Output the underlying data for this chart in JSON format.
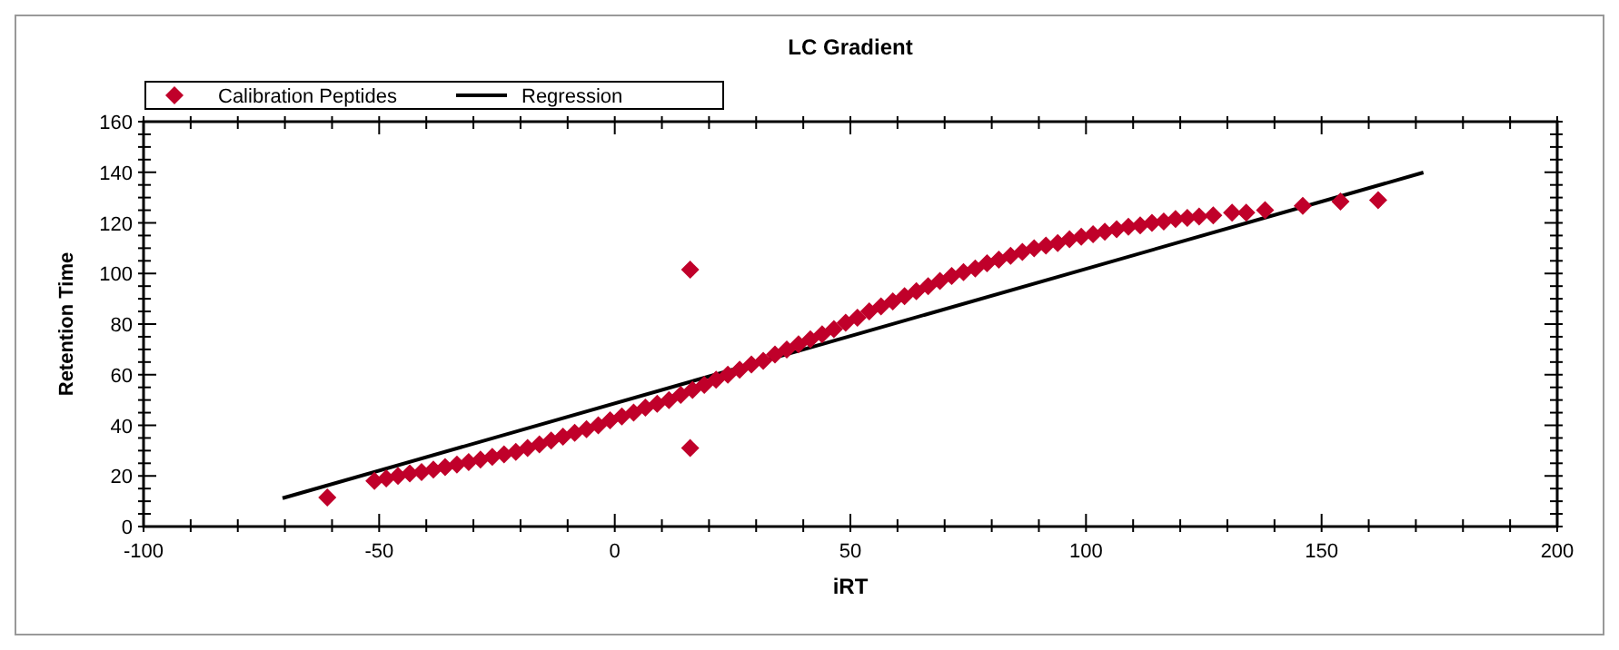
{
  "chart_data": {
    "type": "scatter",
    "title": "LC Gradient",
    "xlabel": "iRT",
    "ylabel": "Retention Time",
    "legend": "top left",
    "marker": "diamond",
    "xlim": [
      -100,
      200
    ],
    "ylim": [
      0,
      160
    ],
    "xticks": [
      -100,
      {
        "value": -90,
        "label": null
      },
      {
        "value": -80,
        "label": null
      },
      {
        "value": -70,
        "label": null
      },
      {
        "value": -60,
        "label": null
      },
      -50,
      {
        "value": -40,
        "label": null
      },
      {
        "value": -30,
        "label": null
      },
      {
        "value": -20,
        "label": null
      },
      {
        "value": -10,
        "label": null
      },
      0,
      {
        "value": 10,
        "label": null
      },
      {
        "value": 20,
        "label": null
      },
      {
        "value": 30,
        "label": null
      },
      {
        "value": 40,
        "label": null
      },
      50,
      {
        "value": 60,
        "label": null
      },
      {
        "value": 70,
        "label": null
      },
      {
        "value": 80,
        "label": null
      },
      {
        "value": 90,
        "label": null
      },
      100,
      {
        "value": 110,
        "label": null
      },
      {
        "value": 120,
        "label": null
      },
      {
        "value": 130,
        "label": null
      },
      {
        "value": 140,
        "label": null
      },
      150,
      {
        "value": 160,
        "label": null
      },
      {
        "value": 170,
        "label": null
      },
      {
        "value": 180,
        "label": null
      },
      {
        "value": 190,
        "label": null
      },
      200
    ],
    "yticks": [
      0,
      {
        "value": 5,
        "label": null
      },
      {
        "value": 10,
        "label": null
      },
      {
        "value": 15,
        "label": null
      },
      20,
      {
        "value": 25,
        "label": null
      },
      {
        "value": 30,
        "label": null
      },
      {
        "value": 35,
        "label": null
      },
      40,
      {
        "value": 45,
        "label": null
      },
      {
        "value": 50,
        "label": null
      },
      {
        "value": 55,
        "label": null
      },
      60,
      {
        "value": 65,
        "label": null
      },
      {
        "value": 70,
        "label": null
      },
      {
        "value": 75,
        "label": null
      },
      80,
      {
        "value": 85,
        "label": null
      },
      {
        "value": 90,
        "label": null
      },
      {
        "value": 95,
        "label": null
      },
      100,
      {
        "value": 105,
        "label": null
      },
      {
        "value": 110,
        "label": null
      },
      {
        "value": 115,
        "label": null
      },
      120,
      {
        "value": 125,
        "label": null
      },
      {
        "value": 130,
        "label": null
      },
      {
        "value": 135,
        "label": null
      },
      140,
      {
        "value": 145,
        "label": null
      },
      {
        "value": 150,
        "label": null
      },
      {
        "value": 155,
        "label": null
      },
      160
    ],
    "series": [
      {
        "name": "Calibration Peptides",
        "color": "#c0002a",
        "x": [
          -61,
          -51,
          -48.5,
          -46,
          -43.5,
          -41,
          -38.5,
          -36,
          -33.5,
          -31,
          -28.5,
          -26,
          -23.5,
          -21,
          -18.5,
          -16,
          -13.5,
          -11,
          -8.5,
          -6,
          -3.5,
          -1,
          1.5,
          4,
          6.5,
          9,
          11.5,
          14,
          16.5,
          19,
          21.5,
          24,
          26.5,
          29,
          31.5,
          34,
          36.5,
          39,
          41.5,
          44,
          46.5,
          49,
          51.5,
          54,
          56.5,
          59,
          61.5,
          64,
          66.5,
          69,
          71.5,
          74,
          76.5,
          79,
          81.5,
          84,
          86.5,
          89,
          91.5,
          94,
          96.5,
          99,
          101.5,
          104,
          106.5,
          109,
          111.5,
          114,
          116.5,
          119,
          121.5,
          124,
          127,
          131,
          134,
          138,
          146,
          154,
          162,
          16,
          16
        ],
        "values": [
          11.5,
          18,
          19,
          20,
          21,
          21.5,
          22.5,
          23.5,
          24.5,
          25.5,
          26.5,
          27.5,
          28.5,
          29.5,
          31,
          32.5,
          34,
          35.5,
          37,
          38.5,
          40,
          42,
          43.5,
          45,
          47,
          48.5,
          50,
          52,
          54,
          56,
          58,
          60,
          62,
          64,
          65.5,
          68,
          70,
          72,
          74,
          76,
          78,
          80.5,
          82.5,
          85,
          87,
          89,
          91,
          93,
          95,
          97,
          99,
          100.5,
          102,
          104,
          105.5,
          107,
          108.5,
          110,
          111,
          112,
          113.5,
          114.5,
          115.5,
          116.5,
          117.5,
          118.5,
          119,
          120,
          120.5,
          121.5,
          122,
          122.5,
          123,
          124,
          124,
          125,
          126.7,
          128.4,
          129,
          101.5,
          31
        ]
      },
      {
        "name": "Regression",
        "type": "line",
        "marker": "none",
        "color": "#000000",
        "x": [
          -70.5,
          171.6
        ],
        "values": [
          11.2,
          139.9
        ]
      }
    ]
  }
}
